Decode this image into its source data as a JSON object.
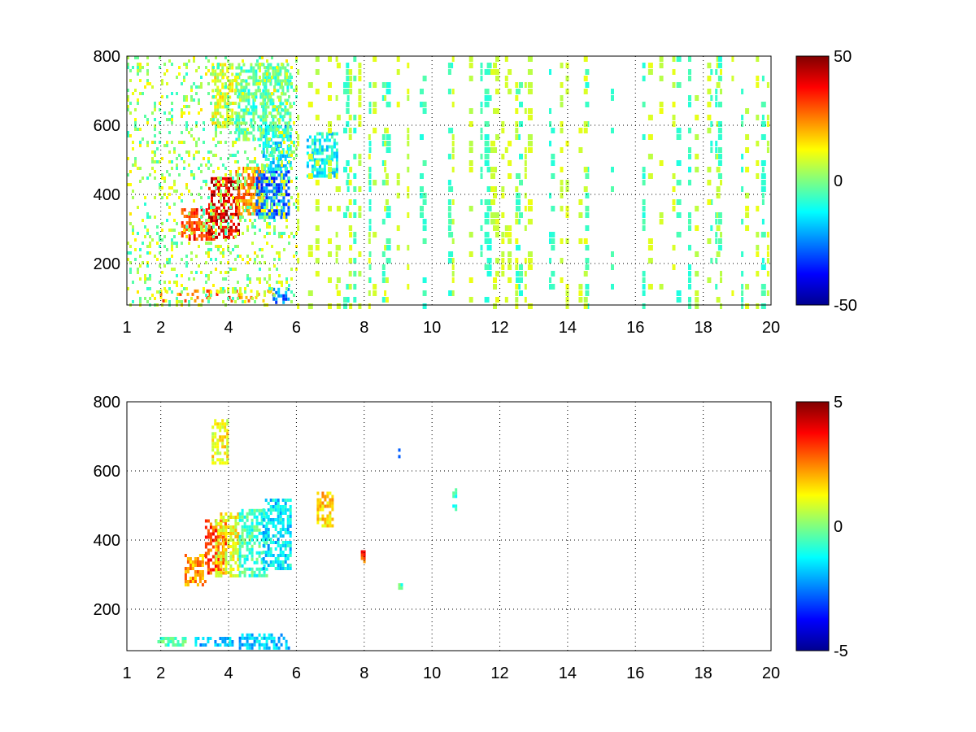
{
  "chart_data": [
    {
      "type": "heatmap",
      "panel": "top",
      "xlim": [
        1,
        20
      ],
      "ylim": [
        80,
        800
      ],
      "x_ticks": [
        "1",
        "2",
        "4",
        "6",
        "8",
        "10",
        "12",
        "14",
        "16",
        "18",
        "20"
      ],
      "x_tick_values": [
        1,
        2,
        4,
        6,
        8,
        10,
        12,
        14,
        16,
        18,
        20
      ],
      "y_ticks": [
        "200",
        "400",
        "600",
        "800"
      ],
      "y_tick_values": [
        200,
        400,
        600,
        800
      ],
      "grid": true,
      "colorbar": {
        "range": [
          -50,
          50
        ],
        "ticks": [
          "-50",
          "0",
          "50"
        ],
        "tick_values": [
          -50,
          0,
          50
        ],
        "colormap": "jet"
      },
      "blobs": [
        {
          "x": [
            2.6,
            3.6
          ],
          "y": [
            270,
            360
          ],
          "value": 32
        },
        {
          "x": [
            3.4,
            4.3
          ],
          "y": [
            280,
            450
          ],
          "value": 40
        },
        {
          "x": [
            4.2,
            5.0
          ],
          "y": [
            340,
            480
          ],
          "value": 24
        },
        {
          "x": [
            4.8,
            5.8
          ],
          "y": [
            330,
            470
          ],
          "value": -28
        },
        {
          "x": [
            5.0,
            5.8
          ],
          "y": [
            470,
            600
          ],
          "value": -14
        },
        {
          "x": [
            3.5,
            4.1
          ],
          "y": [
            600,
            780
          ],
          "value": 9
        },
        {
          "x": [
            4.2,
            5.8
          ],
          "y": [
            560,
            780
          ],
          "value": -4
        },
        {
          "x": [
            1.9,
            5.3
          ],
          "y": [
            90,
            125
          ],
          "value": 24
        },
        {
          "x": [
            5.3,
            5.8
          ],
          "y": [
            90,
            130
          ],
          "value": -25
        },
        {
          "x": [
            6.3,
            7.2
          ],
          "y": [
            450,
            580
          ],
          "value": -12
        },
        {
          "x": [
            1.0,
            6.0
          ],
          "y": [
            80,
            800
          ],
          "value": 3
        }
      ]
    },
    {
      "type": "heatmap",
      "panel": "bottom",
      "xlim": [
        1,
        20
      ],
      "ylim": [
        80,
        800
      ],
      "x_ticks": [
        "1",
        "2",
        "4",
        "6",
        "8",
        "10",
        "12",
        "14",
        "16",
        "18",
        "20"
      ],
      "x_tick_values": [
        1,
        2,
        4,
        6,
        8,
        10,
        12,
        14,
        16,
        18,
        20
      ],
      "y_ticks": [
        "200",
        "400",
        "600",
        "800"
      ],
      "y_tick_values": [
        200,
        400,
        600,
        800
      ],
      "grid": true,
      "colorbar": {
        "range": [
          -5,
          5
        ],
        "ticks": [
          "-5",
          "0",
          "5"
        ],
        "tick_values": [
          -5,
          0,
          5
        ],
        "colormap": "jet"
      },
      "blobs": [
        {
          "x": [
            2.7,
            3.3
          ],
          "y": [
            270,
            360
          ],
          "value": 2.2
        },
        {
          "x": [
            3.3,
            3.9
          ],
          "y": [
            300,
            460
          ],
          "value": 3.0
        },
        {
          "x": [
            3.6,
            4.3
          ],
          "y": [
            300,
            480
          ],
          "value": 1.2
        },
        {
          "x": [
            4.3,
            5.1
          ],
          "y": [
            300,
            490
          ],
          "value": -0.6
        },
        {
          "x": [
            5.0,
            5.8
          ],
          "y": [
            320,
            520
          ],
          "value": -1.5
        },
        {
          "x": [
            3.5,
            4.0
          ],
          "y": [
            620,
            750
          ],
          "value": 1.2
        },
        {
          "x": [
            1.9,
            2.7
          ],
          "y": [
            92,
            120
          ],
          "value": -0.4
        },
        {
          "x": [
            3.0,
            4.2
          ],
          "y": [
            92,
            120
          ],
          "value": -1.8
        },
        {
          "x": [
            4.3,
            5.8
          ],
          "y": [
            92,
            130
          ],
          "value": -1.8
        },
        {
          "x": [
            6.6,
            7.1
          ],
          "y": [
            440,
            540
          ],
          "value": 1.7
        },
        {
          "x": [
            7.9,
            8.0
          ],
          "y": [
            330,
            380
          ],
          "value": 3.0
        },
        {
          "x": [
            10.6,
            10.7
          ],
          "y": [
            490,
            550
          ],
          "value": -0.6
        },
        {
          "x": [
            9.0,
            9.1
          ],
          "y": [
            245,
            275
          ],
          "value": -0.8
        },
        {
          "x": [
            9.0,
            9.1
          ],
          "y": [
            640,
            665
          ],
          "value": -2.5
        }
      ]
    }
  ]
}
